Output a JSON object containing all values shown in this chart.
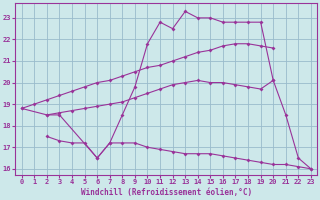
{
  "bg_color": "#cde8ea",
  "grid_color": "#99bbcc",
  "line_color": "#993399",
  "xlim": [
    -0.5,
    23.5
  ],
  "ylim": [
    15.7,
    23.7
  ],
  "yticks": [
    16,
    17,
    18,
    19,
    20,
    21,
    22,
    23
  ],
  "xticks": [
    0,
    1,
    2,
    3,
    4,
    5,
    6,
    7,
    8,
    9,
    10,
    11,
    12,
    13,
    14,
    15,
    16,
    17,
    18,
    19,
    20,
    21,
    22,
    23
  ],
  "xlabel": "Windchill (Refroidissement éolien,°C)",
  "lines": [
    {
      "x": [
        0,
        1,
        2,
        3,
        4,
        5,
        6,
        7,
        8,
        9,
        10,
        11,
        12,
        13,
        14,
        15,
        16,
        17,
        18,
        19,
        20
      ],
      "y": [
        18.8,
        19.0,
        19.2,
        19.4,
        19.6,
        19.8,
        20.0,
        20.1,
        20.3,
        20.5,
        20.7,
        20.8,
        21.0,
        21.2,
        21.4,
        21.5,
        21.7,
        21.8,
        21.8,
        21.7,
        21.6
      ]
    },
    {
      "x": [
        2,
        3,
        4,
        5,
        6,
        7,
        8,
        9,
        10,
        11,
        12,
        13,
        14,
        15,
        16,
        17,
        18,
        19,
        20
      ],
      "y": [
        18.5,
        18.6,
        18.7,
        18.8,
        18.9,
        19.0,
        19.1,
        19.3,
        19.5,
        19.7,
        19.9,
        20.0,
        20.1,
        20.0,
        20.0,
        19.9,
        19.8,
        19.7,
        20.1
      ]
    },
    {
      "x": [
        0,
        2,
        3,
        6,
        7,
        8,
        9,
        10,
        11,
        12,
        13,
        14,
        15,
        16,
        17,
        18,
        19,
        20,
        21,
        22,
        23
      ],
      "y": [
        18.8,
        18.5,
        18.5,
        16.5,
        17.2,
        18.5,
        19.8,
        21.8,
        22.8,
        22.5,
        23.3,
        23.0,
        23.0,
        22.8,
        22.8,
        22.8,
        22.8,
        20.1,
        18.5,
        16.5,
        16.0
      ]
    },
    {
      "x": [
        2,
        3,
        4,
        5,
        6,
        7,
        8,
        9,
        10,
        11,
        12,
        13,
        14,
        15,
        16,
        17,
        18,
        19,
        20,
        21,
        22,
        23
      ],
      "y": [
        17.5,
        17.3,
        17.2,
        17.2,
        16.5,
        17.2,
        17.2,
        17.2,
        17.0,
        16.9,
        16.8,
        16.7,
        16.7,
        16.7,
        16.6,
        16.5,
        16.4,
        16.3,
        16.2,
        16.2,
        16.1,
        16.0
      ]
    }
  ]
}
